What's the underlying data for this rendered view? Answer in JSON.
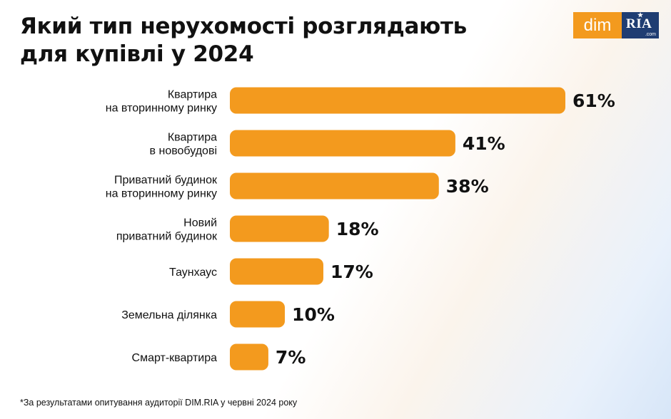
{
  "title_lines": [
    "Який тип нерухомості розглядають",
    "для купівлі у 2024"
  ],
  "logo": {
    "left_text": "dim",
    "right_text": "RIA",
    "right_subtext": ".com"
  },
  "colors": {
    "bar": "#f39a1e",
    "logo_orange": "#f39a1e",
    "logo_navy": "#1f3d72",
    "text": "#111111"
  },
  "chart_data": {
    "type": "bar",
    "orientation": "horizontal",
    "unit": "%",
    "categories": [
      [
        "Квартира",
        "на вторинному ринку"
      ],
      [
        "Квартира",
        "в новобудові"
      ],
      [
        "Приватний будинок",
        "на вторинному ринку"
      ],
      [
        "Новий",
        "приватний будинок"
      ],
      [
        "Таунхаус"
      ],
      [
        "Земельна ділянка"
      ],
      [
        "Смарт-квартира"
      ]
    ],
    "values": [
      61,
      41,
      38,
      18,
      17,
      10,
      7
    ],
    "data_labels": [
      "61%",
      "41%",
      "38%",
      "18%",
      "17%",
      "10%",
      "7%"
    ],
    "xlim": [
      0,
      61
    ],
    "grid": false,
    "axes_visible": false
  },
  "footnote": "*За результатами опитування аудиторії DIM.RIA у червні 2024 року"
}
